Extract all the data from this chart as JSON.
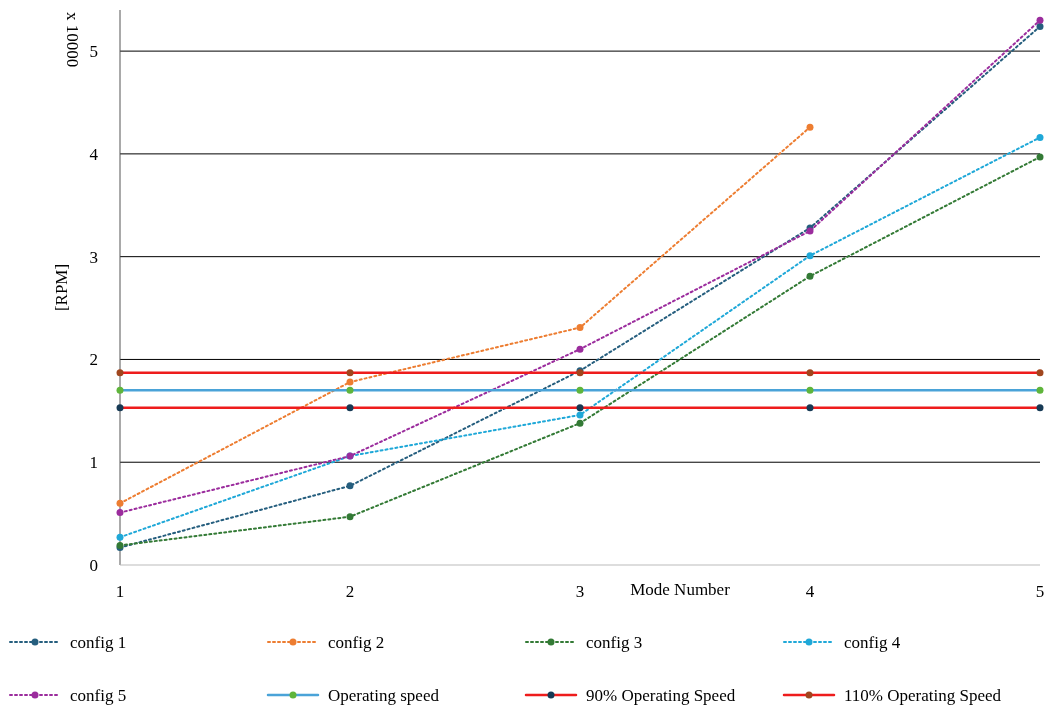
{
  "chart_data": {
    "type": "line",
    "xlabel": "Mode Number",
    "ylabel": "[RPM]",
    "annotations": [
      "x 10000"
    ],
    "x": [
      1,
      2,
      3,
      4,
      5
    ],
    "xlim": [
      1,
      5
    ],
    "xticks": [
      1,
      2,
      3,
      4,
      5
    ],
    "ylim": [
      0,
      5.4
    ],
    "yticks": [
      0,
      1,
      2,
      3,
      4,
      5
    ],
    "grid": "y",
    "legend": "bottom",
    "marker": "circle",
    "series": [
      {
        "name": "config 1",
        "color": "#255e7e",
        "line_style": "dotted",
        "values": [
          0.17,
          0.77,
          1.89,
          3.28,
          5.24
        ]
      },
      {
        "name": "config 2",
        "color": "#ed7d31",
        "line_style": "dotted",
        "values": [
          0.6,
          1.78,
          2.31,
          4.26,
          null
        ]
      },
      {
        "name": "config 3",
        "color": "#337a35",
        "line_style": "dotted",
        "values": [
          0.19,
          0.47,
          1.38,
          2.81,
          3.97
        ]
      },
      {
        "name": "config 4",
        "color": "#1fa8d8",
        "line_style": "dotted",
        "values": [
          0.27,
          1.06,
          1.46,
          3.01,
          4.16
        ]
      },
      {
        "name": "config 5",
        "color": "#9b2c9d",
        "line_style": "dotted",
        "values": [
          0.51,
          1.06,
          2.1,
          3.25,
          5.3
        ]
      },
      {
        "name": "Operating speed",
        "color": "#4aa3d8",
        "colors": [
          "#5fb53b",
          "#5fb53b",
          "#5fb53b",
          "#5fb53b",
          "#5fb53b"
        ],
        "line_style": "solid",
        "values": [
          1.7,
          1.7,
          1.7,
          1.7,
          1.7
        ]
      },
      {
        "name": "90% Operating Speed",
        "color": "#ee1c1c",
        "colors": [
          "#163a55",
          "#163a55",
          "#163a55",
          "#163a55",
          "#163a55"
        ],
        "line_style": "solid",
        "values": [
          1.53,
          1.53,
          1.53,
          1.53,
          1.53
        ]
      },
      {
        "name": "110% Operating Speed",
        "color": "#ee1c1c",
        "colors": [
          "#a0461e",
          "#a0461e",
          "#a0461e",
          "#a0461e",
          "#a0461e"
        ],
        "line_style": "solid",
        "values": [
          1.87,
          1.87,
          1.87,
          1.87,
          1.87
        ]
      }
    ]
  }
}
